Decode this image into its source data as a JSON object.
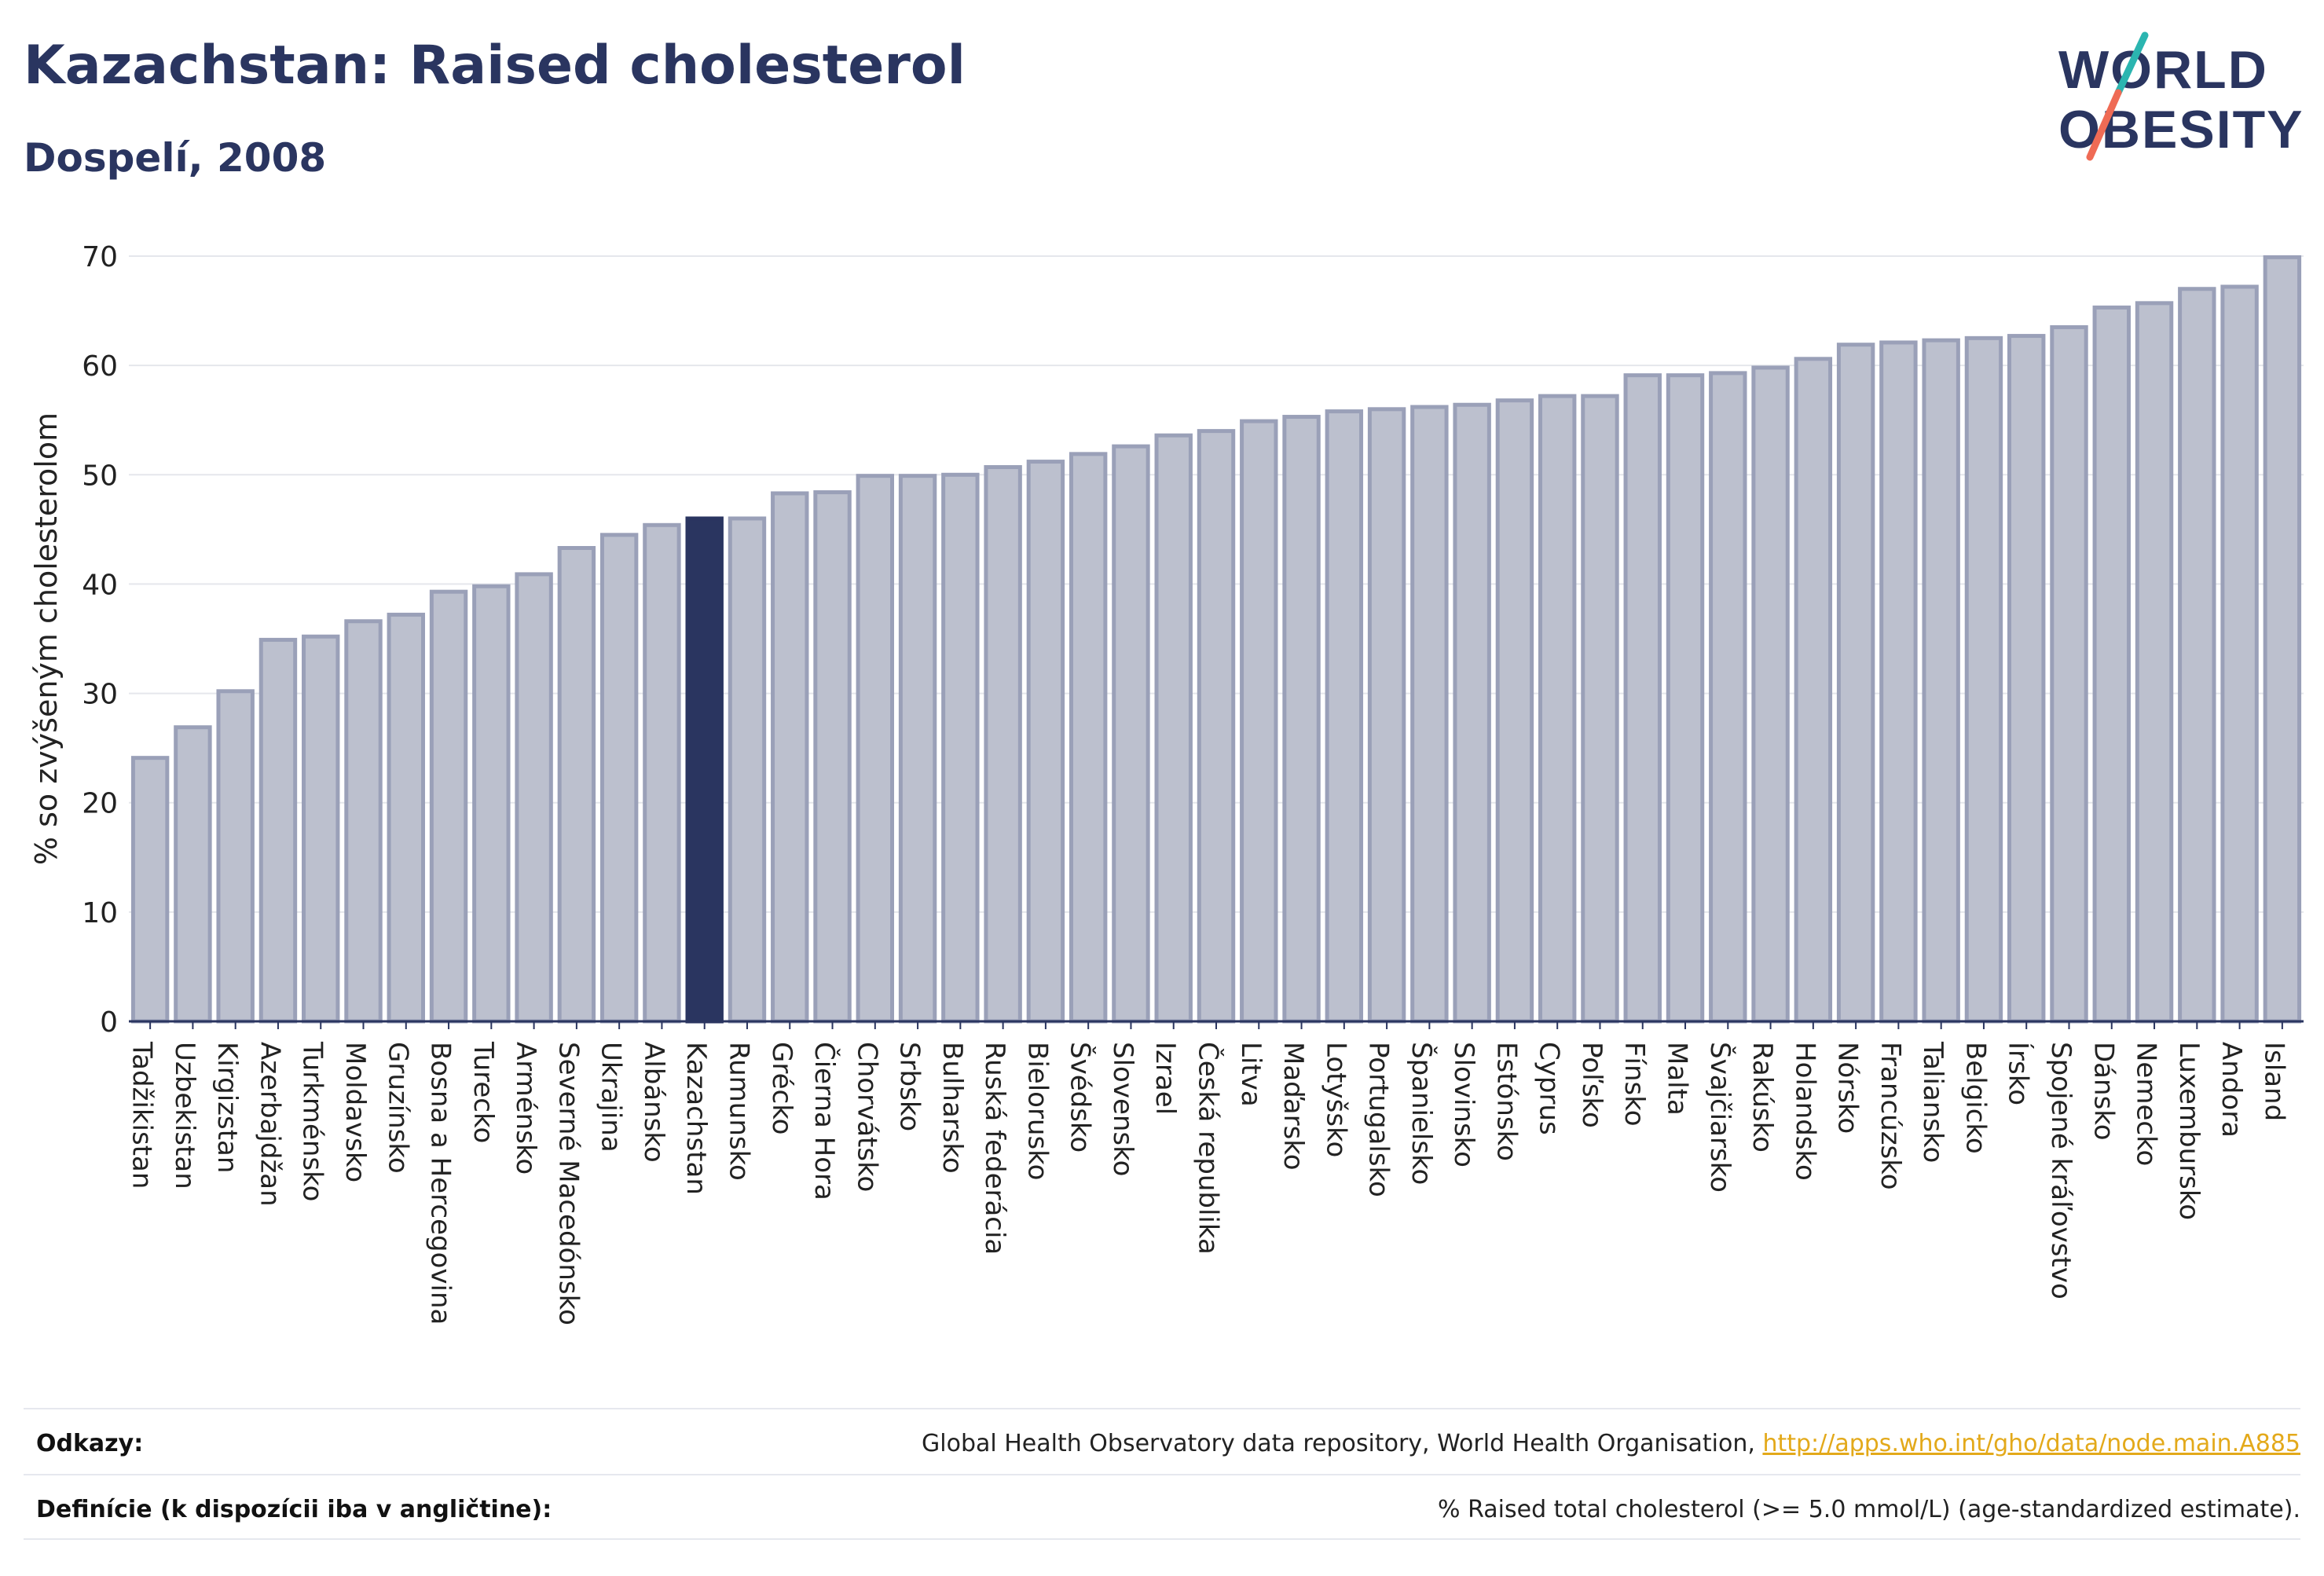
{
  "header": {
    "title": "Kazachstan: Raised cholesterol",
    "subtitle": "Dospelí, 2008"
  },
  "logo": {
    "line1": "WORLD",
    "line2": "OBESITY",
    "text_color": "#2a3560",
    "slash_teal": "#2bb5b0",
    "slash_coral": "#ef6b55"
  },
  "colors": {
    "bar_fill": "#bcc0ce",
    "bar_stroke": "#9aa0b8",
    "highlight_fill": "#2a3560",
    "grid": "#e5e7ec",
    "axis": "#2a3560"
  },
  "chart_data": {
    "type": "bar",
    "ylabel": "% so zvýšeným cholesterolom",
    "ylim": [
      0,
      70
    ],
    "yticks": [
      0,
      10,
      20,
      30,
      40,
      50,
      60,
      70
    ],
    "grid": true,
    "highlight": "Kazachstan",
    "categories": [
      "Tadžikistan",
      "Uzbekistan",
      "Kirgizstan",
      "Azerbajdžan",
      "Turkménsko",
      "Moldavsko",
      "Gruzínsko",
      "Bosna a Hercegovina",
      "Turecko",
      "Arménsko",
      "Severné Macedónsko",
      "Ukrajina",
      "Albánsko",
      "Kazachstan",
      "Rumunsko",
      "Grécko",
      "Čierna Hora",
      "Chorvátsko",
      "Srbsko",
      "Bulharsko",
      "Ruská federácia",
      "Bielorusko",
      "Švédsko",
      "Slovensko",
      "Izrael",
      "Česká republika",
      "Litva",
      "Maďarsko",
      "Lotyšsko",
      "Portugalsko",
      "Španielsko",
      "Slovinsko",
      "Estónsko",
      "Cyprus",
      "Poľsko",
      "Fínsko",
      "Malta",
      "Švajčiarsko",
      "Rakúsko",
      "Holandsko",
      "Nórsko",
      "Francúzsko",
      "Taliansko",
      "Belgicko",
      "Írsko",
      "Spojené kráľovstvo",
      "Dánsko",
      "Nemecko",
      "Luxembursko",
      "Andora",
      "Island"
    ],
    "values": [
      24.1,
      26.9,
      30.2,
      34.9,
      35.2,
      36.6,
      37.2,
      39.3,
      39.8,
      40.9,
      43.3,
      44.5,
      45.4,
      46.0,
      46.0,
      48.3,
      48.4,
      49.9,
      49.9,
      50.0,
      50.7,
      51.2,
      51.9,
      52.6,
      53.6,
      54.0,
      54.9,
      55.3,
      55.8,
      56.0,
      56.2,
      56.4,
      56.8,
      57.2,
      57.2,
      59.1,
      59.1,
      59.3,
      59.8,
      60.6,
      61.9,
      62.1,
      62.3,
      62.5,
      62.7,
      63.5,
      65.3,
      65.7,
      67.0,
      67.2,
      69.9
    ]
  },
  "footer": {
    "sources_label": "Odkazy:",
    "sources_text": "Global Health Observatory data repository, World Health Organisation, ",
    "sources_link": "http://apps.who.int/gho/data/node.main.A885",
    "definition_label": "Definície (k dispozícii iba v angličtine):",
    "definition_text": "% Raised total cholesterol (>= 5.0 mmol/L) (age-standardized estimate)."
  }
}
